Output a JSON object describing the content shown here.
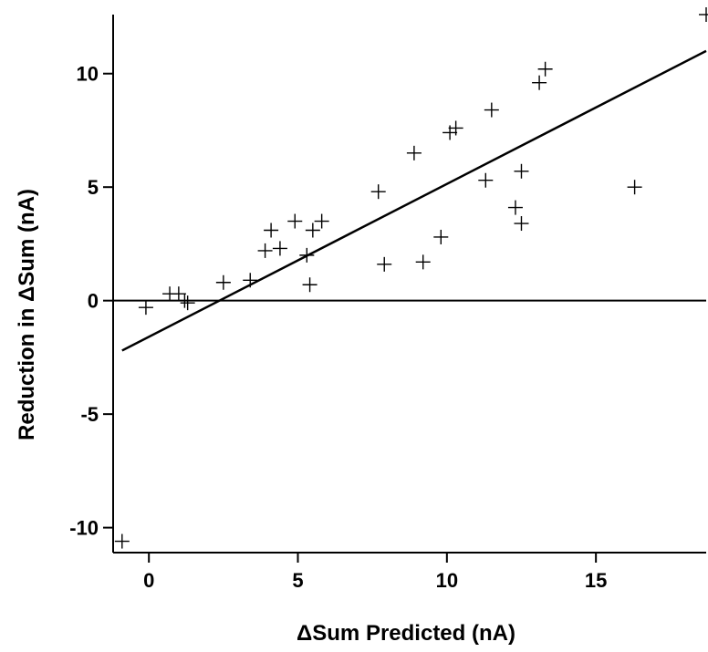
{
  "chart_data": {
    "type": "scatter",
    "xlabel": "ΔSum Predicted (nA)",
    "ylabel": "Reduction in ΔSum (nA)",
    "xlim": [
      -1.2,
      18.7
    ],
    "ylim": [
      -11.1,
      12.6
    ],
    "x_ticks": [
      0,
      5,
      10,
      15
    ],
    "y_ticks": [
      -10,
      -5,
      0,
      5,
      10
    ],
    "x_tick_labels": [
      "0",
      "5",
      "10",
      "15"
    ],
    "y_tick_labels": [
      "-10",
      "-5",
      "0",
      "5",
      "10"
    ],
    "marker": "plus",
    "grid": false,
    "points": [
      {
        "x": -0.9,
        "y": -10.6
      },
      {
        "x": -0.1,
        "y": -0.3
      },
      {
        "x": 0.7,
        "y": 0.3
      },
      {
        "x": 1.0,
        "y": 0.3
      },
      {
        "x": 1.2,
        "y": 0.0
      },
      {
        "x": 1.3,
        "y": -0.1
      },
      {
        "x": 2.5,
        "y": 0.8
      },
      {
        "x": 3.4,
        "y": 0.9
      },
      {
        "x": 3.9,
        "y": 2.2
      },
      {
        "x": 4.1,
        "y": 3.1
      },
      {
        "x": 4.4,
        "y": 2.3
      },
      {
        "x": 4.9,
        "y": 3.5
      },
      {
        "x": 5.3,
        "y": 2.0
      },
      {
        "x": 5.4,
        "y": 0.7
      },
      {
        "x": 5.5,
        "y": 3.1
      },
      {
        "x": 5.8,
        "y": 3.5
      },
      {
        "x": 7.7,
        "y": 4.8
      },
      {
        "x": 7.9,
        "y": 1.6
      },
      {
        "x": 8.9,
        "y": 6.5
      },
      {
        "x": 9.2,
        "y": 1.7
      },
      {
        "x": 9.8,
        "y": 2.8
      },
      {
        "x": 10.1,
        "y": 7.4
      },
      {
        "x": 10.3,
        "y": 7.6
      },
      {
        "x": 11.3,
        "y": 5.3
      },
      {
        "x": 11.5,
        "y": 8.4
      },
      {
        "x": 12.3,
        "y": 4.1
      },
      {
        "x": 12.5,
        "y": 5.7
      },
      {
        "x": 12.5,
        "y": 3.4
      },
      {
        "x": 13.1,
        "y": 9.6
      },
      {
        "x": 13.3,
        "y": 10.2
      },
      {
        "x": 16.3,
        "y": 5.0
      },
      {
        "x": 18.7,
        "y": 12.6
      }
    ],
    "fit_line": {
      "x": [
        -0.9,
        18.7
      ],
      "y": [
        -2.2,
        11.0
      ]
    },
    "reference_line": {
      "y": 0
    }
  }
}
